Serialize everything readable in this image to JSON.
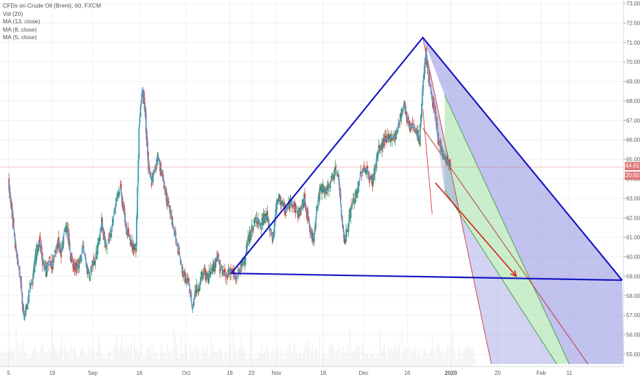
{
  "chart_data": {
    "type": "candlestick",
    "title": "CFDs on Crude Oil (Brent), 60, FXCM",
    "indicators": [
      "Vol (20)",
      "MA (13, close)",
      "MA (8, close)",
      "MA (5, close)"
    ],
    "y_ticks": [
      55,
      56,
      57,
      58,
      59,
      60,
      61,
      62,
      63,
      64,
      65,
      66,
      67,
      68,
      69,
      70,
      71,
      72,
      73
    ],
    "y_tick_labels": [
      "55.00",
      "56.00",
      "57.00",
      "58.00",
      "59.00",
      "60.00",
      "61.00",
      "62.00",
      "63.00",
      "64.00",
      "65.00",
      "66.00",
      "67.00",
      "68.00",
      "69.00",
      "70.00",
      "71.00",
      "72.00",
      "73.00"
    ],
    "ylim": [
      54.3,
      73.2
    ],
    "x_ticks": [
      {
        "label": "5",
        "x": 0
      },
      {
        "label": "19",
        "x": 14
      },
      {
        "label": "Sep",
        "x": 27
      },
      {
        "label": "16",
        "x": 42
      },
      {
        "label": "Oct",
        "x": 57
      },
      {
        "label": "18",
        "x": 71
      },
      {
        "label": "23",
        "x": 78
      },
      {
        "label": "Nov",
        "x": 86
      },
      {
        "label": "18",
        "x": 101
      },
      {
        "label": "Dec",
        "x": 114
      },
      {
        "label": "16",
        "x": 128
      },
      {
        "label": "2020",
        "x": 142
      },
      {
        "label": "20",
        "x": 157
      },
      {
        "label": "Feb",
        "x": 171
      },
      {
        "label": "11",
        "x": 180
      }
    ],
    "xlim": [
      -1,
      197
    ],
    "current_price": "64.61",
    "countdown": "20:50",
    "price_path": [
      [
        0,
        63.8
      ],
      [
        1,
        62.5
      ],
      [
        2,
        61.0
      ],
      [
        3,
        59.8
      ],
      [
        4,
        58.6
      ],
      [
        5,
        56.8
      ],
      [
        6,
        57.5
      ],
      [
        7,
        58.5
      ],
      [
        8,
        59.0
      ],
      [
        9,
        60.3
      ],
      [
        10,
        60.8
      ],
      [
        11,
        59.8
      ],
      [
        12,
        59.2
      ],
      [
        13,
        59.8
      ],
      [
        14,
        59.5
      ],
      [
        15,
        60.2
      ],
      [
        16,
        60.8
      ],
      [
        17,
        60.2
      ],
      [
        18,
        61.5
      ],
      [
        19,
        61.3
      ],
      [
        20,
        60.0
      ],
      [
        21,
        59.6
      ],
      [
        22,
        59.4
      ],
      [
        23,
        59.8
      ],
      [
        24,
        60.5
      ],
      [
        25,
        59.6
      ],
      [
        26,
        59.0
      ],
      [
        27,
        59.7
      ],
      [
        28,
        59.9
      ],
      [
        29,
        60.8
      ],
      [
        30,
        61.8
      ],
      [
        31,
        60.6
      ],
      [
        32,
        60.7
      ],
      [
        33,
        61.4
      ],
      [
        34,
        62.3
      ],
      [
        35,
        63.3
      ],
      [
        36,
        63.5
      ],
      [
        37,
        62.4
      ],
      [
        38,
        61.3
      ],
      [
        39,
        60.9
      ],
      [
        40,
        60.6
      ],
      [
        41,
        60.4
      ],
      [
        42,
        66.8
      ],
      [
        43,
        68.7
      ],
      [
        44,
        67.2
      ],
      [
        45,
        64.5
      ],
      [
        46,
        63.8
      ],
      [
        47,
        64.5
      ],
      [
        48,
        65.2
      ],
      [
        49,
        64.4
      ],
      [
        50,
        63.7
      ],
      [
        51,
        62.8
      ],
      [
        52,
        62.3
      ],
      [
        53,
        61.5
      ],
      [
        54,
        60.7
      ],
      [
        55,
        60.0
      ],
      [
        56,
        59.2
      ],
      [
        57,
        58.8
      ],
      [
        58,
        58.6
      ],
      [
        59,
        57.3
      ],
      [
        60,
        58.3
      ],
      [
        61,
        58.4
      ],
      [
        62,
        59.0
      ],
      [
        63,
        59.2
      ],
      [
        64,
        58.9
      ],
      [
        65,
        59.4
      ],
      [
        66,
        59.5
      ],
      [
        67,
        60.1
      ],
      [
        68,
        59.4
      ],
      [
        69,
        59.2
      ],
      [
        70,
        59.0
      ],
      [
        71,
        59.3
      ],
      [
        72,
        59.2
      ],
      [
        73,
        58.8
      ],
      [
        74,
        59.3
      ],
      [
        75,
        59.5
      ],
      [
        76,
        60.0
      ],
      [
        77,
        60.8
      ],
      [
        78,
        61.3
      ],
      [
        79,
        61.7
      ],
      [
        80,
        62.0
      ],
      [
        81,
        61.5
      ],
      [
        82,
        62.0
      ],
      [
        83,
        62.1
      ],
      [
        84,
        61.3
      ],
      [
        85,
        60.9
      ],
      [
        86,
        62.6
      ],
      [
        87,
        63.0
      ],
      [
        88,
        62.7
      ],
      [
        89,
        62.3
      ],
      [
        90,
        62.6
      ],
      [
        91,
        62.9
      ],
      [
        92,
        62.5
      ],
      [
        93,
        62.2
      ],
      [
        94,
        62.4
      ],
      [
        95,
        63.0
      ],
      [
        96,
        62.2
      ],
      [
        97,
        61.2
      ],
      [
        98,
        60.9
      ],
      [
        99,
        62.5
      ],
      [
        100,
        63.3
      ],
      [
        101,
        63.6
      ],
      [
        102,
        63.3
      ],
      [
        103,
        63.6
      ],
      [
        104,
        64.1
      ],
      [
        105,
        64.4
      ],
      [
        106,
        64.2
      ],
      [
        107,
        62.0
      ],
      [
        108,
        60.9
      ],
      [
        109,
        61.5
      ],
      [
        110,
        62.5
      ],
      [
        111,
        62.9
      ],
      [
        112,
        63.3
      ],
      [
        113,
        64.2
      ],
      [
        114,
        64.5
      ],
      [
        115,
        64.5
      ],
      [
        116,
        64.0
      ],
      [
        117,
        63.9
      ],
      [
        118,
        64.8
      ],
      [
        119,
        65.5
      ],
      [
        120,
        65.7
      ],
      [
        121,
        66.1
      ],
      [
        122,
        66.0
      ],
      [
        123,
        66.2
      ],
      [
        124,
        66.1
      ],
      [
        125,
        66.6
      ],
      [
        126,
        67.2
      ],
      [
        127,
        67.9
      ],
      [
        128,
        67.1
      ],
      [
        129,
        66.6
      ],
      [
        130,
        66.8
      ],
      [
        131,
        66.4
      ],
      [
        132,
        65.9
      ],
      [
        133,
        68.6
      ],
      [
        134,
        70.5
      ],
      [
        135,
        69.1
      ],
      [
        136,
        68.2
      ],
      [
        137,
        67.3
      ],
      [
        138,
        66.0
      ],
      [
        139,
        65.6
      ],
      [
        140,
        65.1
      ],
      [
        141,
        64.9
      ],
      [
        142,
        64.6
      ]
    ],
    "drawings": {
      "triangle": [
        [
          71.5,
          59.15
        ],
        [
          133,
          71.25
        ],
        [
          197,
          58.8
        ]
      ],
      "baseline": [
        [
          71.5,
          59.15
        ],
        [
          197,
          58.8
        ]
      ],
      "arrow": [
        [
          137,
          63.8
        ],
        [
          163,
          59.0
        ]
      ],
      "pitchfork_pivot": [
        133,
        71.25
      ],
      "pitchfork_left_end": [
        155,
        54.5
      ],
      "pitchfork_lines": [
        {
          "from": [
            140,
            68.3
          ],
          "to": [
            180,
            54.5
          ]
        },
        {
          "from": [
            133,
            66.6
          ],
          "to": [
            186,
            54.5
          ]
        },
        {
          "from": [
            140,
            63.4
          ],
          "to": [
            176,
            54.5
          ]
        }
      ],
      "red_line": [
        [
          133,
          67.6
        ],
        [
          136,
          62.2
        ]
      ]
    },
    "colors": {
      "up": "#4aa3df",
      "down": "#e05a5a",
      "drawing_blue": "#1515c4",
      "arrow_red": "#d71c1c",
      "band_blue": "#8f8fe0",
      "band_green": "#9fe0a0",
      "grid": "#eef0f3"
    }
  }
}
